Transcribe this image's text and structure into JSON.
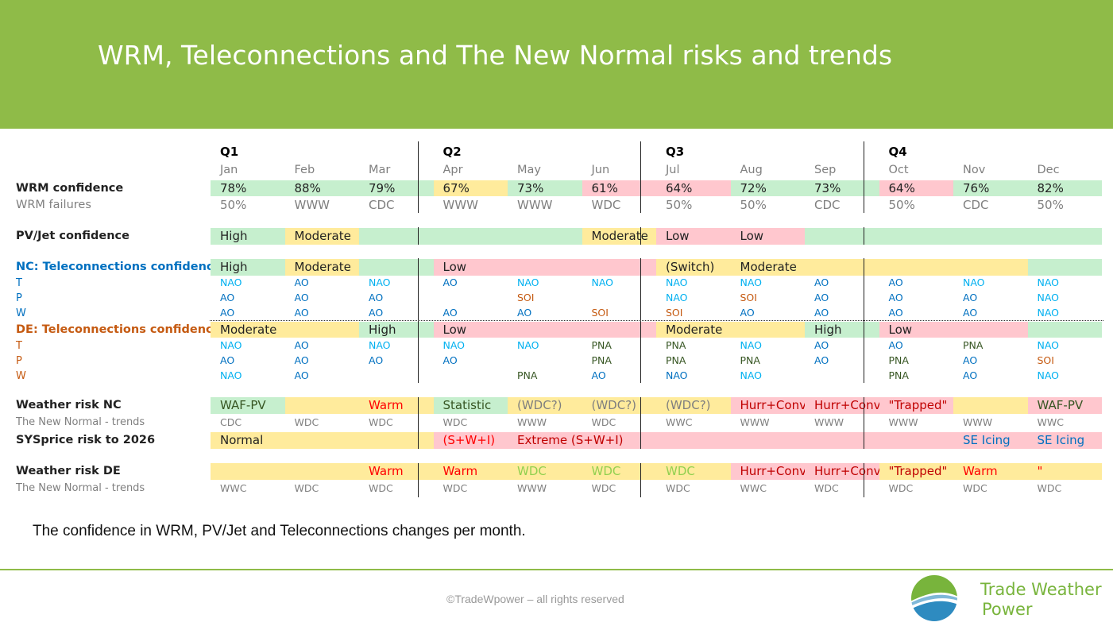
{
  "title": "WRM, Teleconnections and The New Normal risks and trends",
  "quarters": [
    "Q1",
    "Q2",
    "Q3",
    "Q4"
  ],
  "months": [
    "Jan",
    "Feb",
    "Mar",
    "Apr",
    "May",
    "Jun",
    "Jul",
    "Aug",
    "Sep",
    "Oct",
    "Nov",
    "Dec"
  ],
  "colors": {
    "green": "#c6efce",
    "yellow": "#ffeb9c",
    "red": "#ffc7ce",
    "header": "#8fbb48",
    "blue": "#0070c0",
    "cyan": "#00b0f0",
    "orange": "#c55a11",
    "olive": "#92d050",
    "darkred": "#c00000",
    "brightred": "#ff0000",
    "darkgreen": "#375623"
  },
  "rows": [
    {
      "id": "wrm-confidence",
      "label": "WRM confidence",
      "label_style": "bold",
      "cells": [
        {
          "span": 1,
          "text": "78%",
          "bg": "green"
        },
        {
          "span": 1,
          "text": "88%",
          "bg": "green"
        },
        {
          "span": 1,
          "text": "79%",
          "bg": "green"
        },
        {
          "span": 1,
          "text": "67%",
          "bg": "yellow"
        },
        {
          "span": 1,
          "text": "73%",
          "bg": "green"
        },
        {
          "span": 1,
          "text": "61%",
          "bg": "red"
        },
        {
          "span": 1,
          "text": "64%",
          "bg": "red"
        },
        {
          "span": 1,
          "text": "72%",
          "bg": "green"
        },
        {
          "span": 1,
          "text": "73%",
          "bg": "green"
        },
        {
          "span": 1,
          "text": "64%",
          "bg": "red"
        },
        {
          "span": 1,
          "text": "76%",
          "bg": "green"
        },
        {
          "span": 1,
          "text": "82%",
          "bg": "green"
        }
      ]
    },
    {
      "id": "wrm-failures",
      "label": "WRM failures",
      "label_style": "gray",
      "cells": [
        {
          "span": 1,
          "text": "50%",
          "fg": "gray"
        },
        {
          "span": 1,
          "text": "WWW",
          "fg": "gray"
        },
        {
          "span": 1,
          "text": "CDC",
          "fg": "gray"
        },
        {
          "span": 1,
          "text": "WWW",
          "fg": "gray"
        },
        {
          "span": 1,
          "text": "WWW",
          "fg": "gray"
        },
        {
          "span": 1,
          "text": "WDC",
          "fg": "gray"
        },
        {
          "span": 1,
          "text": "50%",
          "fg": "gray"
        },
        {
          "span": 1,
          "text": "50%",
          "fg": "gray"
        },
        {
          "span": 1,
          "text": "CDC",
          "fg": "gray"
        },
        {
          "span": 1,
          "text": "50%",
          "fg": "gray"
        },
        {
          "span": 1,
          "text": "CDC",
          "fg": "gray"
        },
        {
          "span": 1,
          "text": "50%",
          "fg": "gray"
        }
      ]
    },
    {
      "id": "pvjet-confidence",
      "label": "PV/Jet confidence",
      "label_style": "bold",
      "cells": [
        {
          "span": 1,
          "text": "High",
          "bg": "green"
        },
        {
          "span": 1,
          "text": "Moderate",
          "bg": "yellow"
        },
        {
          "span": 1,
          "text": "",
          "bg": "green"
        },
        {
          "span": 2,
          "text": "",
          "bg": "green"
        },
        {
          "span": 1,
          "text": "Moderate",
          "bg": "yellow",
          "align": "right"
        },
        {
          "span": 1,
          "text": "Low",
          "bg": "red"
        },
        {
          "span": 1,
          "text": "Low",
          "bg": "red"
        },
        {
          "span": 1,
          "text": "",
          "bg": "green"
        },
        {
          "span": 3,
          "text": "",
          "bg": "green"
        }
      ]
    },
    {
      "id": "nc-tele-confidence",
      "label": "NC: Teleconnections confidence",
      "label_style": "blue",
      "cells": [
        {
          "span": 1,
          "text": "High",
          "bg": "green"
        },
        {
          "span": 1,
          "text": "Moderate",
          "bg": "yellow"
        },
        {
          "span": 1,
          "text": "",
          "bg": "green"
        },
        {
          "span": 3,
          "text": "Low",
          "bg": "red"
        },
        {
          "span": 1,
          "text": "(Switch)",
          "bg": "yellow"
        },
        {
          "span": 2,
          "text": "Moderate",
          "bg": "yellow"
        },
        {
          "span": 2,
          "text": "",
          "bg": "yellow"
        },
        {
          "span": 1,
          "text": "",
          "bg": "green"
        }
      ]
    },
    {
      "id": "nc-t",
      "label": "T",
      "label_style": "blue",
      "small": true,
      "cells": [
        {
          "span": 1,
          "text": "NAO",
          "fg": "cyan"
        },
        {
          "span": 1,
          "text": "AO",
          "fg": "blue"
        },
        {
          "span": 1,
          "text": "NAO",
          "fg": "cyan"
        },
        {
          "span": 1,
          "text": "AO",
          "fg": "blue"
        },
        {
          "span": 1,
          "text": "NAO",
          "fg": "cyan"
        },
        {
          "span": 1,
          "text": "NAO",
          "fg": "cyan"
        },
        {
          "span": 1,
          "text": "NAO",
          "fg": "cyan"
        },
        {
          "span": 1,
          "text": "NAO",
          "fg": "cyan"
        },
        {
          "span": 1,
          "text": "AO",
          "fg": "blue"
        },
        {
          "span": 1,
          "text": "AO",
          "fg": "blue"
        },
        {
          "span": 1,
          "text": "NAO",
          "fg": "cyan"
        },
        {
          "span": 1,
          "text": "NAO",
          "fg": "cyan"
        }
      ]
    },
    {
      "id": "nc-p",
      "label": "P",
      "label_style": "blue",
      "small": true,
      "cells": [
        {
          "span": 1,
          "text": "AO",
          "fg": "blue"
        },
        {
          "span": 1,
          "text": "AO",
          "fg": "blue"
        },
        {
          "span": 1,
          "text": "AO",
          "fg": "blue"
        },
        {
          "span": 1,
          "text": ""
        },
        {
          "span": 1,
          "text": "SOI",
          "fg": "orange"
        },
        {
          "span": 1,
          "text": ""
        },
        {
          "span": 1,
          "text": "NAO",
          "fg": "cyan"
        },
        {
          "span": 1,
          "text": "SOI",
          "fg": "orange"
        },
        {
          "span": 1,
          "text": "AO",
          "fg": "blue"
        },
        {
          "span": 1,
          "text": "AO",
          "fg": "blue"
        },
        {
          "span": 1,
          "text": "AO",
          "fg": "blue"
        },
        {
          "span": 1,
          "text": "NAO",
          "fg": "cyan"
        }
      ]
    },
    {
      "id": "nc-w",
      "label": "W",
      "label_style": "blue",
      "small": true,
      "cells": [
        {
          "span": 1,
          "text": "AO",
          "fg": "blue"
        },
        {
          "span": 1,
          "text": "AO",
          "fg": "blue"
        },
        {
          "span": 1,
          "text": "AO",
          "fg": "blue"
        },
        {
          "span": 1,
          "text": "AO",
          "fg": "blue"
        },
        {
          "span": 1,
          "text": "AO",
          "fg": "blue"
        },
        {
          "span": 1,
          "text": "SOI",
          "fg": "orange"
        },
        {
          "span": 1,
          "text": "SOI",
          "fg": "orange"
        },
        {
          "span": 1,
          "text": "AO",
          "fg": "blue"
        },
        {
          "span": 1,
          "text": "AO",
          "fg": "blue"
        },
        {
          "span": 1,
          "text": "AO",
          "fg": "blue"
        },
        {
          "span": 1,
          "text": "AO",
          "fg": "blue"
        },
        {
          "span": 1,
          "text": "NAO",
          "fg": "cyan"
        }
      ]
    },
    {
      "id": "de-tele-confidence",
      "label": "DE: Teleconnections confidence",
      "label_style": "orange",
      "cells": [
        {
          "span": 2,
          "text": "Moderate",
          "bg": "yellow"
        },
        {
          "span": 1,
          "text": "High",
          "bg": "green"
        },
        {
          "span": 3,
          "text": "Low",
          "bg": "red"
        },
        {
          "span": 2,
          "text": "Moderate",
          "bg": "yellow"
        },
        {
          "span": 1,
          "text": "High",
          "bg": "green"
        },
        {
          "span": 2,
          "text": "Low",
          "bg": "red"
        },
        {
          "span": 1,
          "text": "",
          "bg": "green"
        }
      ]
    },
    {
      "id": "de-t",
      "label": "T",
      "label_style": "orange",
      "small": true,
      "cells": [
        {
          "span": 1,
          "text": "NAO",
          "fg": "cyan"
        },
        {
          "span": 1,
          "text": "AO",
          "fg": "blue"
        },
        {
          "span": 1,
          "text": "NAO",
          "fg": "cyan"
        },
        {
          "span": 1,
          "text": "NAO",
          "fg": "cyan"
        },
        {
          "span": 1,
          "text": "NAO",
          "fg": "cyan"
        },
        {
          "span": 1,
          "text": "PNA",
          "fg": "darkgreen"
        },
        {
          "span": 1,
          "text": "PNA",
          "fg": "darkgreen"
        },
        {
          "span": 1,
          "text": "NAO",
          "fg": "cyan"
        },
        {
          "span": 1,
          "text": "AO",
          "fg": "blue"
        },
        {
          "span": 1,
          "text": "AO",
          "fg": "blue"
        },
        {
          "span": 1,
          "text": "PNA",
          "fg": "darkgreen"
        },
        {
          "span": 1,
          "text": "NAO",
          "fg": "cyan"
        }
      ]
    },
    {
      "id": "de-p",
      "label": "P",
      "label_style": "orange",
      "small": true,
      "cells": [
        {
          "span": 1,
          "text": "AO",
          "fg": "blue"
        },
        {
          "span": 1,
          "text": "AO",
          "fg": "blue"
        },
        {
          "span": 1,
          "text": "AO",
          "fg": "blue"
        },
        {
          "span": 1,
          "text": "AO",
          "fg": "blue"
        },
        {
          "span": 1,
          "text": ""
        },
        {
          "span": 1,
          "text": "PNA",
          "fg": "darkgreen"
        },
        {
          "span": 1,
          "text": "PNA",
          "fg": "darkgreen"
        },
        {
          "span": 1,
          "text": "PNA",
          "fg": "darkgreen"
        },
        {
          "span": 1,
          "text": "AO",
          "fg": "blue"
        },
        {
          "span": 1,
          "text": "PNA",
          "fg": "darkgreen"
        },
        {
          "span": 1,
          "text": "AO",
          "fg": "blue"
        },
        {
          "span": 1,
          "text": "SOI",
          "fg": "orange"
        }
      ]
    },
    {
      "id": "de-w",
      "label": "W",
      "label_style": "orange",
      "small": true,
      "cells": [
        {
          "span": 1,
          "text": "NAO",
          "fg": "cyan"
        },
        {
          "span": 1,
          "text": "AO",
          "fg": "blue"
        },
        {
          "span": 1,
          "text": ""
        },
        {
          "span": 1,
          "text": ""
        },
        {
          "span": 1,
          "text": "PNA",
          "fg": "darkgreen"
        },
        {
          "span": 1,
          "text": "AO",
          "fg": "blue"
        },
        {
          "span": 1,
          "text": "NAO",
          "fg": "blue"
        },
        {
          "span": 1,
          "text": "NAO",
          "fg": "cyan"
        },
        {
          "span": 1,
          "text": ""
        },
        {
          "span": 1,
          "text": "PNA",
          "fg": "darkgreen"
        },
        {
          "span": 1,
          "text": "AO",
          "fg": "blue"
        },
        {
          "span": 1,
          "text": "NAO",
          "fg": "cyan"
        }
      ]
    },
    {
      "id": "weather-risk-nc",
      "label": "Weather risk NC",
      "label_style": "bold",
      "cells": [
        {
          "span": 1,
          "text": "WAF-PV",
          "bg": "green",
          "fg": "darkgreen"
        },
        {
          "span": 1,
          "text": "",
          "bg": "yellow"
        },
        {
          "span": 1,
          "text": "Warm",
          "bg": "yellow",
          "fg": "brightred"
        },
        {
          "span": 1,
          "text": "Statistic",
          "bg": "green",
          "fg": "darkgreen"
        },
        {
          "span": 1,
          "text": "(WDC?)",
          "bg": "yellow",
          "fg": "gray"
        },
        {
          "span": 1,
          "text": "(WDC?)",
          "bg": "yellow",
          "fg": "gray"
        },
        {
          "span": 1,
          "text": "(WDC?)",
          "bg": "yellow",
          "fg": "gray"
        },
        {
          "span": 1,
          "text": "Hurr+Conv",
          "bg": "red",
          "fg": "darkred"
        },
        {
          "span": 1,
          "text": "Hurr+Conv",
          "bg": "red",
          "fg": "darkred"
        },
        {
          "span": 1,
          "text": "\"Trapped\"",
          "bg": "red",
          "fg": "darkred"
        },
        {
          "span": 1,
          "text": "",
          "bg": "yellow"
        },
        {
          "span": 1,
          "text": "WAF-PV",
          "bg": "red",
          "fg": "darkgreen"
        }
      ]
    },
    {
      "id": "new-normal-nc",
      "label": "The New Normal - trends",
      "label_style": "gray",
      "small": true,
      "cells": [
        {
          "span": 1,
          "text": "CDC",
          "fg": "gray"
        },
        {
          "span": 1,
          "text": "WDC",
          "fg": "gray"
        },
        {
          "span": 1,
          "text": "WDC",
          "fg": "gray"
        },
        {
          "span": 1,
          "text": "WDC",
          "fg": "gray"
        },
        {
          "span": 1,
          "text": "WWW",
          "fg": "gray"
        },
        {
          "span": 1,
          "text": "WDC",
          "fg": "gray"
        },
        {
          "span": 1,
          "text": "WWC",
          "fg": "gray"
        },
        {
          "span": 1,
          "text": "WWW",
          "fg": "gray"
        },
        {
          "span": 1,
          "text": "WWW",
          "fg": "gray"
        },
        {
          "span": 1,
          "text": "WWW",
          "fg": "gray"
        },
        {
          "span": 1,
          "text": "WWW",
          "fg": "gray"
        },
        {
          "span": 1,
          "text": "WWC",
          "fg": "gray"
        }
      ]
    },
    {
      "id": "sysprice-risk",
      "label": "SYSprice risk to 2026",
      "label_style": "bold",
      "cells": [
        {
          "span": 3,
          "text": "Normal",
          "bg": "yellow"
        },
        {
          "span": 1,
          "text": "(S+W+I)",
          "bg": "red",
          "fg": "brightred"
        },
        {
          "span": 2,
          "text": "Extreme (S+W+I)",
          "bg": "red",
          "fg": "darkred"
        },
        {
          "span": 4,
          "text": "",
          "bg": "red"
        },
        {
          "span": 1,
          "text": "SE Icing",
          "bg": "red",
          "fg": "blue"
        },
        {
          "span": 1,
          "text": "SE Icing",
          "bg": "red",
          "fg": "blue"
        }
      ]
    },
    {
      "id": "weather-risk-de",
      "label": "Weather risk DE",
      "label_style": "bold",
      "cells": [
        {
          "span": 1,
          "text": "",
          "bg": "yellow"
        },
        {
          "span": 1,
          "text": "",
          "bg": "yellow"
        },
        {
          "span": 1,
          "text": "Warm",
          "bg": "yellow",
          "fg": "brightred"
        },
        {
          "span": 1,
          "text": "Warm",
          "bg": "yellow",
          "fg": "brightred"
        },
        {
          "span": 1,
          "text": "WDC",
          "bg": "yellow",
          "fg": "olive"
        },
        {
          "span": 1,
          "text": "WDC",
          "bg": "yellow",
          "fg": "olive"
        },
        {
          "span": 1,
          "text": "WDC",
          "bg": "yellow",
          "fg": "olive"
        },
        {
          "span": 1,
          "text": "Hurr+Conv",
          "bg": "red",
          "fg": "darkred"
        },
        {
          "span": 1,
          "text": "Hurr+Conv",
          "bg": "red",
          "fg": "darkred"
        },
        {
          "span": 1,
          "text": "\"Trapped\"",
          "bg": "yellow",
          "fg": "darkred"
        },
        {
          "span": 1,
          "text": "Warm",
          "bg": "yellow",
          "fg": "brightred"
        },
        {
          "span": 1,
          "text": "\"",
          "bg": "yellow",
          "fg": "brightred"
        }
      ]
    },
    {
      "id": "new-normal-de",
      "label": "The New Normal - trends",
      "label_style": "gray",
      "small": true,
      "cells": [
        {
          "span": 1,
          "text": "WWC",
          "fg": "gray"
        },
        {
          "span": 1,
          "text": "WDC",
          "fg": "gray"
        },
        {
          "span": 1,
          "text": "WDC",
          "fg": "gray"
        },
        {
          "span": 1,
          "text": "WDC",
          "fg": "gray"
        },
        {
          "span": 1,
          "text": "WWW",
          "fg": "gray"
        },
        {
          "span": 1,
          "text": "WDC",
          "fg": "gray"
        },
        {
          "span": 1,
          "text": "WDC",
          "fg": "gray"
        },
        {
          "span": 1,
          "text": "WWC",
          "fg": "gray"
        },
        {
          "span": 1,
          "text": "WDC",
          "fg": "gray"
        },
        {
          "span": 1,
          "text": "WDC",
          "fg": "gray"
        },
        {
          "span": 1,
          "text": "WDC",
          "fg": "gray"
        },
        {
          "span": 1,
          "text": "WDC",
          "fg": "gray"
        }
      ]
    }
  ],
  "caption": "The confidence in WRM, PV/Jet and Teleconnections changes per month.",
  "footer": {
    "copyright": "©TradeWpower – all rights reserved",
    "brand_line1": "Trade Weather",
    "brand_line2": "Power"
  }
}
